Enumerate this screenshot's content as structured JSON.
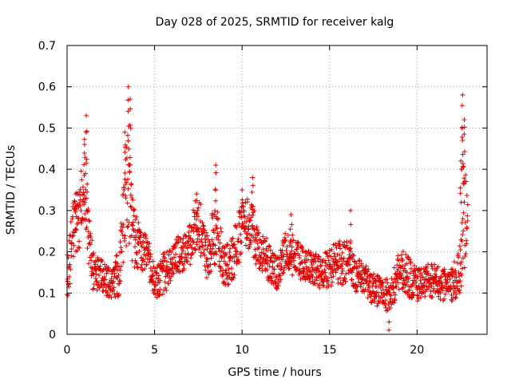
{
  "chart_data": {
    "type": "scatter",
    "title": "Day 028 of 2025, SRMTID for receiver kalg",
    "xlabel": "GPS time / hours",
    "ylabel": "SRMTID / TECUs",
    "xlim": [
      0,
      24
    ],
    "ylim": [
      0,
      0.7
    ],
    "x_ticks": [
      0,
      5,
      10,
      15,
      20
    ],
    "y_ticks": [
      0,
      0.1,
      0.2,
      0.3,
      0.4,
      0.5,
      0.6,
      0.7
    ],
    "x_tick_labels": [
      "0",
      "5",
      "10",
      "15",
      "20"
    ],
    "y_tick_labels": [
      "0",
      "0.1",
      "0.2",
      "0.3",
      "0.4",
      "0.5",
      "0.6",
      "0.7"
    ],
    "grid": true,
    "marker": "+",
    "color": "#e00000",
    "series": [
      {
        "name": "SRMTID",
        "envelope": {
          "x": [
            0.0,
            0.3,
            0.5,
            0.8,
            1.0,
            1.2,
            1.5,
            2.0,
            2.5,
            3.0,
            3.3,
            3.5,
            3.8,
            4.2,
            4.6,
            5.0,
            5.5,
            6.0,
            6.5,
            7.0,
            7.5,
            8.0,
            8.5,
            9.0,
            9.5,
            10.0,
            10.5,
            11.0,
            11.5,
            12.0,
            12.5,
            13.0,
            13.5,
            14.0,
            14.5,
            15.0,
            15.5,
            16.0,
            16.5,
            17.0,
            17.5,
            18.0,
            18.5,
            19.0,
            19.5,
            20.0,
            20.5,
            21.0,
            21.5,
            22.0,
            22.5,
            22.7,
            22.9
          ],
          "center": [
            0.13,
            0.24,
            0.28,
            0.3,
            0.38,
            0.25,
            0.15,
            0.14,
            0.12,
            0.15,
            0.33,
            0.35,
            0.24,
            0.2,
            0.2,
            0.12,
            0.15,
            0.18,
            0.2,
            0.22,
            0.28,
            0.18,
            0.25,
            0.16,
            0.19,
            0.26,
            0.27,
            0.2,
            0.18,
            0.15,
            0.2,
            0.19,
            0.17,
            0.16,
            0.15,
            0.16,
            0.17,
            0.18,
            0.14,
            0.14,
            0.11,
            0.1,
            0.09,
            0.16,
            0.14,
            0.12,
            0.13,
            0.13,
            0.12,
            0.12,
            0.17,
            0.3,
            0.24
          ],
          "spread": [
            0.06,
            0.08,
            0.08,
            0.09,
            0.12,
            0.07,
            0.05,
            0.04,
            0.04,
            0.06,
            0.12,
            0.14,
            0.08,
            0.05,
            0.05,
            0.04,
            0.06,
            0.05,
            0.05,
            0.06,
            0.07,
            0.06,
            0.08,
            0.05,
            0.06,
            0.07,
            0.07,
            0.05,
            0.05,
            0.04,
            0.05,
            0.05,
            0.04,
            0.04,
            0.04,
            0.05,
            0.06,
            0.05,
            0.04,
            0.04,
            0.04,
            0.04,
            0.04,
            0.05,
            0.05,
            0.04,
            0.04,
            0.04,
            0.04,
            0.04,
            0.07,
            0.14,
            0.08
          ],
          "sampling_interval_hours": 0.0125
        },
        "peaks": [
          {
            "x": 1.1,
            "y": 0.53
          },
          {
            "x": 1.0,
            "y": 0.46
          },
          {
            "x": 0.5,
            "y": 0.34
          },
          {
            "x": 3.5,
            "y": 0.6
          },
          {
            "x": 3.6,
            "y": 0.57
          },
          {
            "x": 3.3,
            "y": 0.49
          },
          {
            "x": 7.4,
            "y": 0.34
          },
          {
            "x": 8.5,
            "y": 0.41
          },
          {
            "x": 10.0,
            "y": 0.35
          },
          {
            "x": 10.6,
            "y": 0.38
          },
          {
            "x": 12.8,
            "y": 0.29
          },
          {
            "x": 16.2,
            "y": 0.3
          },
          {
            "x": 22.6,
            "y": 0.58
          },
          {
            "x": 22.7,
            "y": 0.52
          },
          {
            "x": 22.6,
            "y": 0.47
          },
          {
            "x": 22.5,
            "y": 0.42
          },
          {
            "x": 18.4,
            "y": 0.03
          }
        ]
      }
    ]
  }
}
